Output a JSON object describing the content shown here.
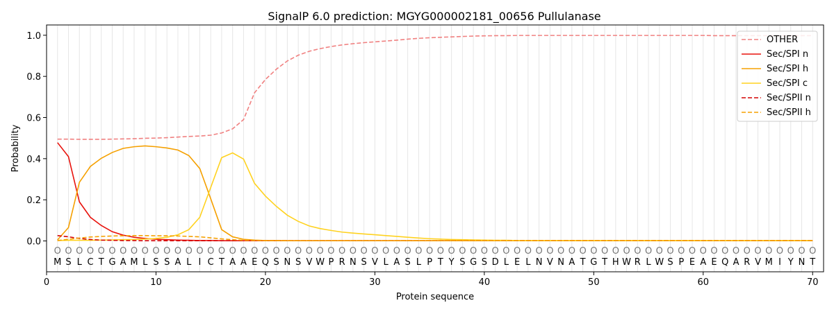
{
  "chart_data": {
    "type": "line",
    "title": "SignalP 6.0 prediction: MGYG000002181_00656 Pullulanase",
    "xlabel": "Protein sequence",
    "ylabel": "Probability",
    "xlim": [
      0,
      71
    ],
    "ylim": [
      -0.15,
      1.05
    ],
    "xticks": [
      0,
      10,
      20,
      30,
      40,
      50,
      60,
      70
    ],
    "yticks": [
      0.0,
      0.2,
      0.4,
      0.6,
      0.8,
      1.0
    ],
    "xtick_labels": [
      "0",
      "10",
      "20",
      "30",
      "40",
      "50",
      "60",
      "70"
    ],
    "ytick_labels": [
      "0.0",
      "0.2",
      "0.4",
      "0.6",
      "0.8",
      "1.0"
    ],
    "legend_placement": "upper right",
    "sequence": [
      "M",
      "S",
      "L",
      "C",
      "T",
      "G",
      "A",
      "M",
      "L",
      "S",
      "S",
      "A",
      "L",
      "I",
      "C",
      "T",
      "A",
      "A",
      "E",
      "Q",
      "S",
      "N",
      "S",
      "V",
      "W",
      "P",
      "R",
      "N",
      "S",
      "V",
      "L",
      "A",
      "S",
      "L",
      "P",
      "T",
      "Y",
      "S",
      "G",
      "S",
      "D",
      "L",
      "E",
      "L",
      "N",
      "V",
      "N",
      "A",
      "T",
      "G",
      "T",
      "H",
      "W",
      "R",
      "L",
      "W",
      "S",
      "P",
      "E",
      "A",
      "E",
      "Q",
      "A",
      "R",
      "V",
      "M",
      "I",
      "Y",
      "N",
      "T"
    ],
    "region_marker": "O",
    "series": [
      {
        "name": "OTHER",
        "color": "#f08080",
        "dash": "dashed",
        "values": [
          0.495,
          0.495,
          0.494,
          0.494,
          0.494,
          0.495,
          0.496,
          0.497,
          0.499,
          0.5,
          0.502,
          0.505,
          0.508,
          0.51,
          0.514,
          0.525,
          0.545,
          0.59,
          0.72,
          0.785,
          0.835,
          0.875,
          0.903,
          0.922,
          0.935,
          0.945,
          0.953,
          0.959,
          0.964,
          0.968,
          0.972,
          0.976,
          0.981,
          0.985,
          0.988,
          0.99,
          0.992,
          0.994,
          0.996,
          0.997,
          0.998,
          0.998,
          0.999,
          0.999,
          0.999,
          0.999,
          0.999,
          0.999,
          0.999,
          0.999,
          0.999,
          0.999,
          0.999,
          0.999,
          0.999,
          0.999,
          0.999,
          0.999,
          0.999,
          0.999,
          0.998,
          0.998,
          0.998,
          0.998,
          0.998,
          0.998,
          0.998,
          0.998,
          0.998,
          0.998
        ]
      },
      {
        "name": "Sec/SPI n",
        "color": "#e8120c",
        "dash": "solid",
        "values": [
          0.478,
          0.41,
          0.19,
          0.115,
          0.075,
          0.045,
          0.028,
          0.018,
          0.012,
          0.008,
          0.006,
          0.004,
          0.003,
          0.002,
          0.002,
          0.001,
          0.001,
          0.001,
          0.001,
          0.001,
          0.001,
          0.001,
          0.001,
          0.001,
          0.001,
          0.001,
          0.001,
          0.001,
          0.001,
          0.001,
          0.001,
          0.001,
          0.001,
          0.001,
          0.001,
          0.001,
          0.001,
          0.001,
          0.001,
          0.001,
          0.001,
          0.001,
          0.001,
          0.001,
          0.001,
          0.001,
          0.001,
          0.001,
          0.001,
          0.001,
          0.001,
          0.001,
          0.001,
          0.001,
          0.001,
          0.001,
          0.001,
          0.001,
          0.001,
          0.001,
          0.001,
          0.001,
          0.001,
          0.001,
          0.001,
          0.001,
          0.001,
          0.001,
          0.001,
          0.001
        ]
      },
      {
        "name": "Sec/SPI h",
        "color": "#f5a000",
        "dash": "solid",
        "values": [
          0.005,
          0.065,
          0.285,
          0.362,
          0.402,
          0.43,
          0.45,
          0.458,
          0.462,
          0.458,
          0.452,
          0.442,
          0.415,
          0.352,
          0.205,
          0.055,
          0.02,
          0.008,
          0.004,
          0.002,
          0.002,
          0.001,
          0.001,
          0.001,
          0.001,
          0.001,
          0.001,
          0.001,
          0.001,
          0.001,
          0.001,
          0.001,
          0.001,
          0.001,
          0.001,
          0.001,
          0.001,
          0.001,
          0.001,
          0.001,
          0.001,
          0.001,
          0.001,
          0.001,
          0.001,
          0.001,
          0.001,
          0.001,
          0.001,
          0.001,
          0.001,
          0.001,
          0.001,
          0.001,
          0.001,
          0.001,
          0.001,
          0.001,
          0.001,
          0.001,
          0.001,
          0.001,
          0.001,
          0.001,
          0.001,
          0.001,
          0.001,
          0.001,
          0.001,
          0.001
        ]
      },
      {
        "name": "Sec/SPI c",
        "color": "#ffd21f",
        "dash": "solid",
        "values": [
          0.002,
          0.003,
          0.003,
          0.003,
          0.004,
          0.005,
          0.006,
          0.007,
          0.009,
          0.012,
          0.018,
          0.03,
          0.055,
          0.115,
          0.26,
          0.405,
          0.428,
          0.398,
          0.28,
          0.218,
          0.168,
          0.125,
          0.095,
          0.073,
          0.06,
          0.051,
          0.043,
          0.038,
          0.034,
          0.03,
          0.026,
          0.022,
          0.018,
          0.014,
          0.011,
          0.009,
          0.007,
          0.006,
          0.005,
          0.004,
          0.003,
          0.003,
          0.002,
          0.002,
          0.002,
          0.002,
          0.002,
          0.002,
          0.002,
          0.002,
          0.002,
          0.002,
          0.002,
          0.002,
          0.002,
          0.002,
          0.002,
          0.002,
          0.002,
          0.002,
          0.002,
          0.002,
          0.002,
          0.002,
          0.002,
          0.002,
          0.002,
          0.002,
          0.002,
          0.002
        ]
      },
      {
        "name": "Sec/SPII n",
        "color": "#d40000",
        "dash": "dashed",
        "values": [
          0.026,
          0.02,
          0.012,
          0.007,
          0.004,
          0.003,
          0.002,
          0.002,
          0.001,
          0.001,
          0.001,
          0.001,
          0.001,
          0.001,
          0.001,
          0.001,
          0.001,
          0.001,
          0.001,
          0.001,
          0.001,
          0.001,
          0.001,
          0.001,
          0.001,
          0.001,
          0.001,
          0.001,
          0.001,
          0.001,
          0.001,
          0.001,
          0.001,
          0.001,
          0.001,
          0.001,
          0.001,
          0.001,
          0.001,
          0.001,
          0.001,
          0.001,
          0.001,
          0.001,
          0.001,
          0.001,
          0.001,
          0.001,
          0.001,
          0.001,
          0.001,
          0.001,
          0.001,
          0.001,
          0.001,
          0.001,
          0.001,
          0.001,
          0.001,
          0.001,
          0.001,
          0.001,
          0.001,
          0.001,
          0.001,
          0.001,
          0.001,
          0.001,
          0.001,
          0.001
        ]
      },
      {
        "name": "Sec/SPII h",
        "color": "#f5a000",
        "dash": "dashed",
        "values": [
          0.002,
          0.008,
          0.014,
          0.019,
          0.022,
          0.024,
          0.025,
          0.026,
          0.026,
          0.025,
          0.025,
          0.024,
          0.022,
          0.02,
          0.015,
          0.01,
          0.006,
          0.003,
          0.002,
          0.001,
          0.001,
          0.001,
          0.001,
          0.001,
          0.001,
          0.001,
          0.001,
          0.001,
          0.001,
          0.001,
          0.001,
          0.001,
          0.001,
          0.001,
          0.001,
          0.001,
          0.001,
          0.001,
          0.001,
          0.001,
          0.001,
          0.001,
          0.001,
          0.001,
          0.001,
          0.001,
          0.001,
          0.001,
          0.001,
          0.001,
          0.001,
          0.001,
          0.001,
          0.001,
          0.001,
          0.001,
          0.001,
          0.001,
          0.001,
          0.001,
          0.001,
          0.001,
          0.001,
          0.001,
          0.001,
          0.001,
          0.001,
          0.001,
          0.001,
          0.001
        ]
      }
    ]
  }
}
